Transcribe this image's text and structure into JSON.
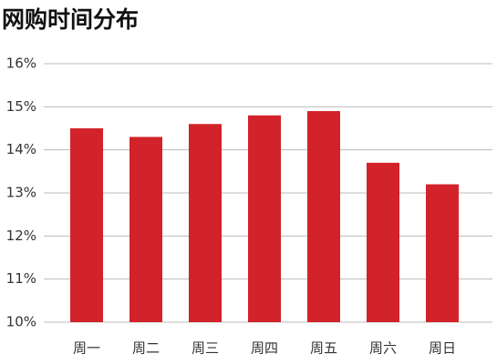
{
  "chart_data": {
    "type": "bar",
    "title": "网购时间分布",
    "categories": [
      "周一",
      "周二",
      "周三",
      "周四",
      "周五",
      "周六",
      "周日"
    ],
    "values": [
      14.5,
      14.3,
      14.6,
      14.8,
      14.9,
      13.7,
      13.2
    ],
    "color": "#d2232a",
    "ylim": [
      10,
      16
    ],
    "yticks": [
      {
        "value": 10,
        "label": "10%"
      },
      {
        "value": 11,
        "label": "11%"
      },
      {
        "value": 12,
        "label": "12%"
      },
      {
        "value": 13,
        "label": "13%"
      },
      {
        "value": 14,
        "label": "14%"
      },
      {
        "value": 15,
        "label": "15%"
      },
      {
        "value": 16,
        "label": "16%"
      }
    ],
    "grid": true
  }
}
